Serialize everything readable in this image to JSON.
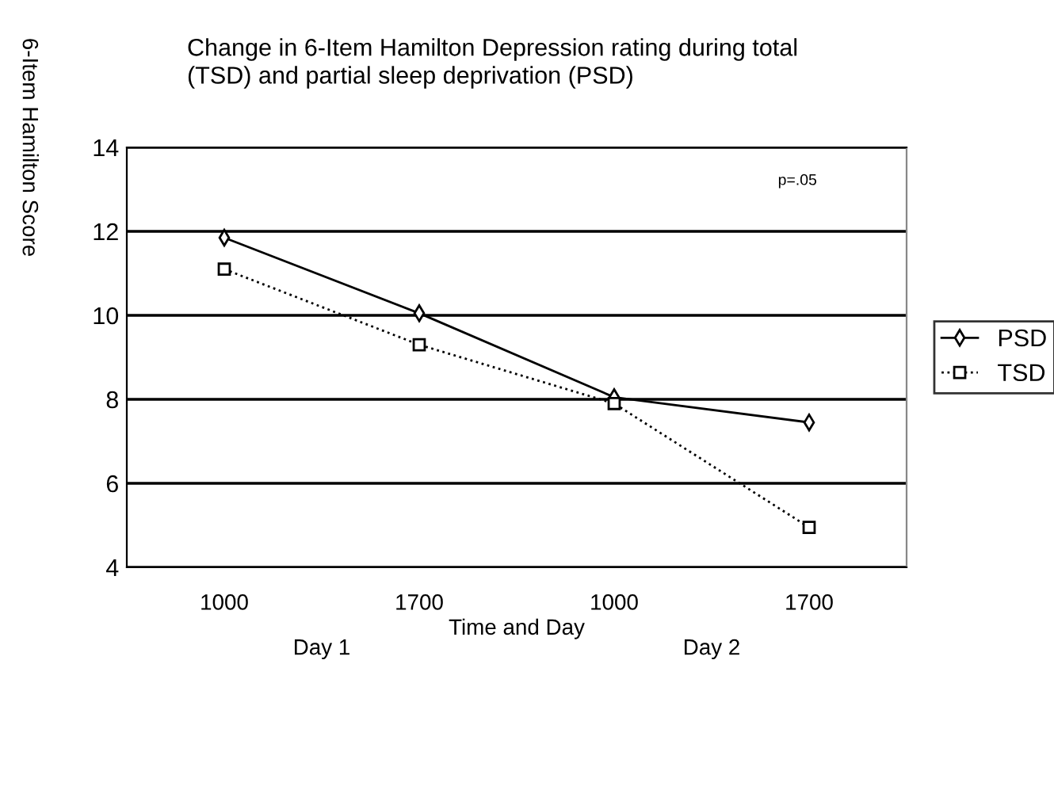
{
  "chart_data": {
    "type": "line",
    "title": "Change in 6-Item Hamilton Depression rating during total\n(TSD) and partial sleep deprivation (PSD)",
    "xlabel": "Time and Day",
    "ylabel": "6-Item Hamilton Score",
    "categories": [
      "1000",
      "1700",
      "1000",
      "1700"
    ],
    "series": [
      {
        "name": "PSD",
        "color": "#000000",
        "values": [
          11.85,
          10.05,
          8.05,
          7.45
        ],
        "marker": "diamond",
        "line_style": "solid"
      },
      {
        "name": "TSD",
        "color": "#000000",
        "values": [
          11.1,
          9.3,
          7.9,
          4.95
        ],
        "marker": "square",
        "line_style": "dotted"
      }
    ],
    "ylim": [
      4,
      14
    ],
    "yticks": [
      4,
      6,
      8,
      10,
      12,
      14
    ],
    "grid": "y",
    "legend": "right",
    "annotations": [
      "p=.05",
      "Day 1",
      "Day 2"
    ]
  }
}
